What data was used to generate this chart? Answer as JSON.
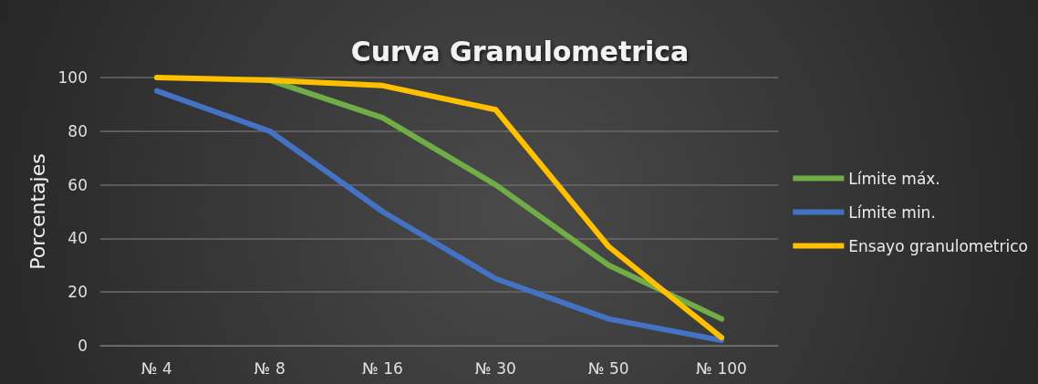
{
  "chart_data": {
    "type": "line",
    "title": "Curva Granulometrica",
    "ylabel": "Porcentajes",
    "categories": [
      "№ 4",
      "№ 8",
      "№ 16",
      "№ 30",
      "№ 50",
      "№ 100"
    ],
    "series": [
      {
        "name": "Límite máx.",
        "color": "#70ad47",
        "values": [
          null,
          99,
          85,
          60,
          30,
          10
        ]
      },
      {
        "name": "Límite min.",
        "color": "#4472c4",
        "values": [
          95,
          80,
          50,
          25,
          10,
          2
        ]
      },
      {
        "name": "Ensayo granulometrico",
        "color": "#ffc000",
        "values": [
          100,
          99,
          97,
          88,
          37,
          3
        ]
      }
    ],
    "ylim": [
      0,
      100
    ],
    "yticks": [
      0,
      20,
      40,
      60,
      80,
      100
    ],
    "grid": "y",
    "legend": "right",
    "marker": "none",
    "line_style": "solid"
  }
}
